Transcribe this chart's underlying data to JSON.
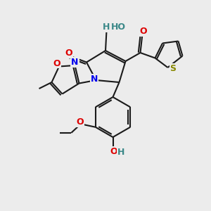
{
  "bg_color": "#ececec",
  "bond_color": "#1a1a1a",
  "bond_lw": 1.5,
  "N_color": "#0000ee",
  "O_red_color": "#dd0000",
  "O_teal_color": "#3a8888",
  "S_color": "#888800",
  "fig_w": 3.0,
  "fig_h": 3.0,
  "dpi": 100,
  "xlim": [
    0,
    10
  ],
  "ylim": [
    0,
    10
  ]
}
